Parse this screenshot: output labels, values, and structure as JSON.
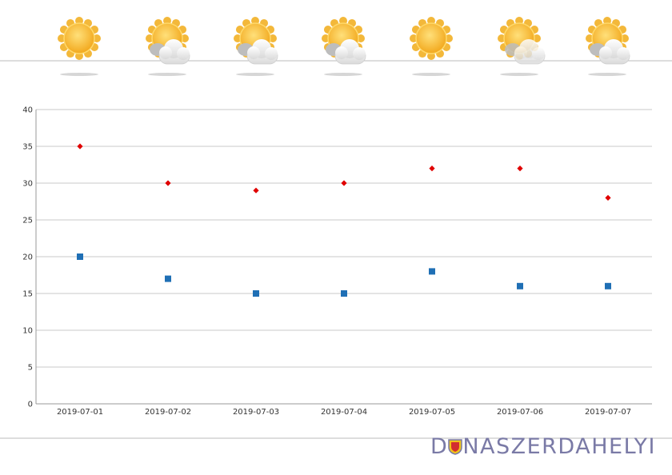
{
  "weather_icons": [
    "sun-icon",
    "sun-cloud-icon",
    "sun-cloud-icon",
    "sun-cloud-icon",
    "sun-icon",
    "sun-cloud-light-icon",
    "sun-cloud-icon"
  ],
  "brand": {
    "prefix": "D",
    "suffix": "NASZERDAHELYI",
    "colors": {
      "text": "#7a7aa6",
      "shield_red": "#d32f2f",
      "shield_gold": "#f0c419"
    }
  },
  "chart_data": {
    "type": "scatter",
    "categories": [
      "2019-07-01",
      "2019-07-02",
      "2019-07-03",
      "2019-07-04",
      "2019-07-05",
      "2019-07-06",
      "2019-07-07"
    ],
    "series": [
      {
        "values": [
          35,
          30,
          29,
          30,
          32,
          32,
          28
        ],
        "color": "#e00000",
        "marker": "diamond"
      },
      {
        "values": [
          20,
          17,
          15,
          15,
          18,
          16,
          16
        ],
        "color": "#1f6fb5",
        "marker": "square"
      }
    ],
    "ylim": [
      0,
      40
    ],
    "yticks": [
      0,
      5,
      10,
      15,
      20,
      25,
      30,
      35,
      40
    ],
    "grid": true,
    "legend": "none"
  }
}
